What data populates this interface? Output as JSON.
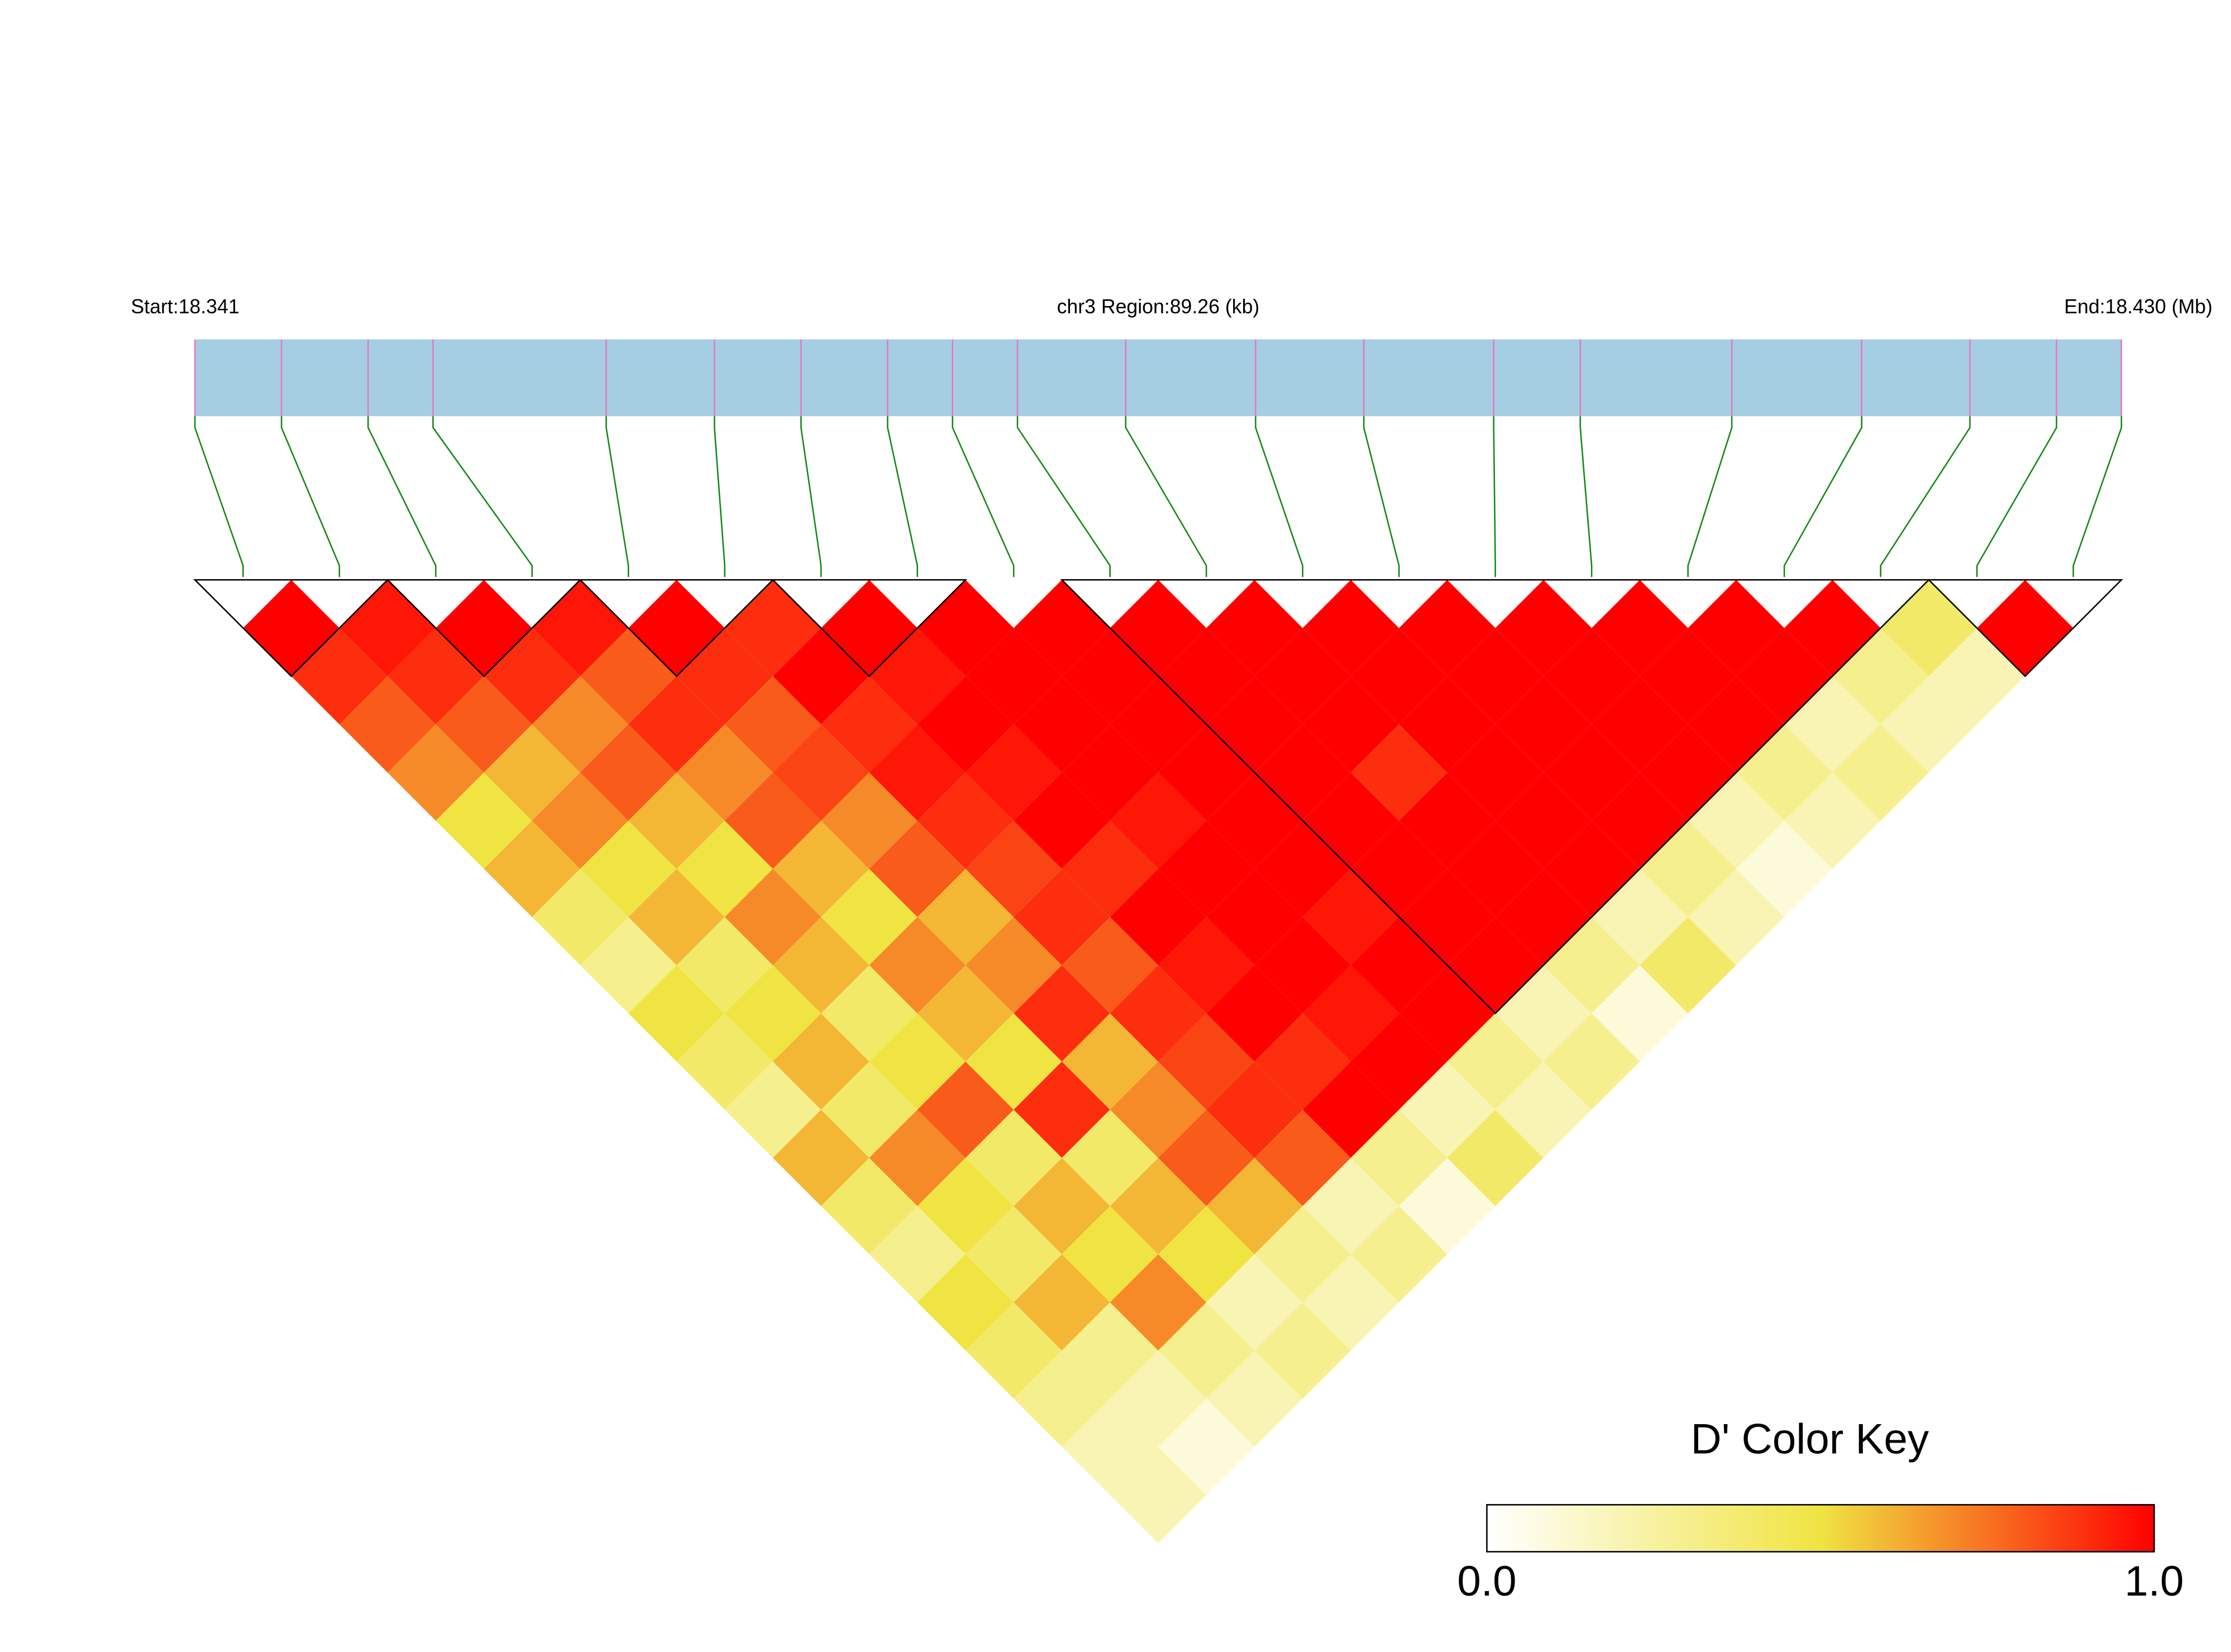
{
  "chart_data": {
    "type": "ld-heatmap",
    "title": "chr3 Region:89.26 (kb)",
    "start_label": "Start:18.341",
    "end_label": "End:18.430 (Mb)",
    "xlim": [
      18.341,
      18.43
    ],
    "positions": [
      18.341,
      18.345,
      18.349,
      18.352,
      18.36,
      18.365,
      18.369,
      18.373,
      18.376,
      18.379,
      18.384,
      18.39,
      18.395,
      18.401,
      18.405,
      18.412,
      18.418,
      18.423,
      18.427,
      18.43
    ],
    "dprime": [
      [
        1,
        0.9,
        0.8,
        0.7,
        0.5,
        0.6,
        0.4,
        0.3,
        0.5,
        0.4,
        0.3,
        0.6,
        0.4,
        0.3,
        0.5,
        0.4,
        0.3,
        0.2,
        0.2
      ],
      [
        0.95,
        0.9,
        0.8,
        0.6,
        0.7,
        0.5,
        0.6,
        0.4,
        0.5,
        0.6,
        0.4,
        0.7,
        0.5,
        0.4,
        0.6,
        0.3,
        0.2,
        0.1
      ],
      [
        1,
        0.9,
        0.7,
        0.8,
        0.6,
        0.5,
        0.7,
        0.6,
        0.4,
        0.5,
        0.8,
        0.4,
        0.6,
        0.5,
        0.7,
        0.3,
        0.2
      ],
      [
        0.95,
        0.8,
        0.9,
        0.7,
        0.8,
        0.6,
        0.5,
        0.7,
        0.6,
        0.5,
        0.9,
        0.4,
        0.6,
        0.5,
        0.2,
        0.3
      ],
      [
        1,
        0.9,
        0.8,
        0.85,
        0.7,
        0.8,
        0.6,
        0.7,
        0.9,
        0.6,
        0.7,
        0.8,
        0.6,
        0.3,
        0.2
      ],
      [
        0.9,
        1,
        0.9,
        0.95,
        0.9,
        0.85,
        0.9,
        0.8,
        0.9,
        0.85,
        0.9,
        0.8,
        0.2,
        0.3
      ],
      [
        1,
        0.95,
        1,
        0.95,
        1,
        0.9,
        1,
        0.95,
        1,
        0.9,
        1,
        0.3,
        0.1
      ],
      [
        1,
        1,
        1,
        1,
        0.95,
        1,
        1,
        1,
        0.95,
        1,
        0.2,
        0.4
      ],
      [
        1,
        1,
        1,
        1,
        1,
        1,
        0.95,
        1,
        1,
        0.3,
        0.2
      ],
      [
        1,
        1,
        1,
        1,
        1,
        1,
        1,
        1,
        0.2,
        0.3
      ],
      [
        1,
        1,
        1,
        0.9,
        1,
        1,
        1,
        0.3,
        0.1
      ],
      [
        1,
        1,
        1,
        1,
        1,
        1,
        0.2,
        0.4
      ],
      [
        1,
        1,
        1,
        1,
        1,
        0.3,
        0.2
      ],
      [
        1,
        1,
        1,
        1,
        0.2,
        0.1
      ],
      [
        1,
        1,
        1,
        0.3,
        0.2
      ],
      [
        1,
        1,
        0.2,
        0.3
      ],
      [
        1,
        0.3,
        0.2
      ],
      [
        0.4,
        0.2
      ],
      [
        1
      ]
    ],
    "blocks": [
      [
        0,
        1
      ],
      [
        2,
        3
      ],
      [
        4,
        5
      ],
      [
        6,
        7
      ],
      [
        9,
        17
      ],
      [
        18,
        19
      ]
    ],
    "colorbar": {
      "title": "D' Color Key",
      "clim": [
        0,
        1
      ],
      "cticks": [
        {
          "value": 0,
          "label": "0.0"
        },
        {
          "value": 1,
          "label": "1.0"
        }
      ],
      "colors": [
        "#ffffff",
        "#f0e442",
        "#ff0000"
      ]
    },
    "bar_color": "#a6cee3",
    "snp_color": "#e377c2",
    "link_color": "#118811"
  }
}
